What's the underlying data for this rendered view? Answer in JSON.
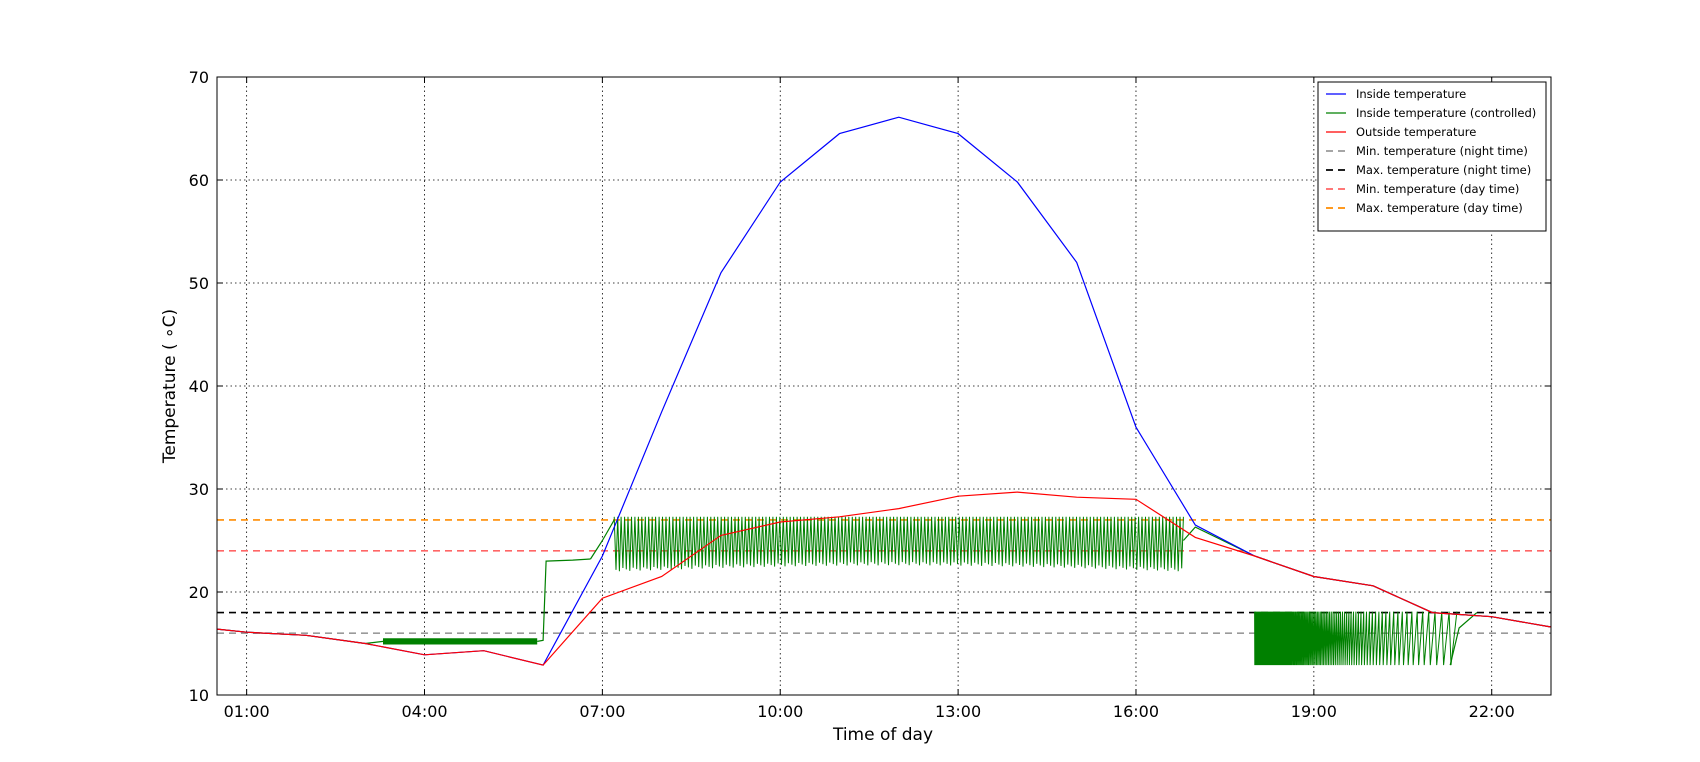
{
  "chart_data": {
    "type": "line",
    "title": "",
    "xlabel": "Time of day",
    "ylabel": "Temperature ( ∘C)",
    "xlim": [
      0.5,
      23
    ],
    "ylim": [
      10,
      70
    ],
    "x_unit": "hours",
    "x_ticks": [
      1,
      4,
      7,
      10,
      13,
      16,
      19,
      22
    ],
    "x_tick_labels": [
      "01:00",
      "04:00",
      "07:00",
      "10:00",
      "13:00",
      "16:00",
      "19:00",
      "22:00"
    ],
    "y_ticks": [
      10,
      20,
      30,
      40,
      50,
      60,
      70
    ],
    "y_tick_labels": [
      "10",
      "20",
      "30",
      "40",
      "50",
      "60",
      "70"
    ],
    "grid": true,
    "legend_position": "top-right",
    "series": [
      {
        "name": "Inside temperature",
        "color": "#0000ff",
        "style": "solid",
        "x": [
          0.5,
          1,
          2,
          3,
          4,
          5,
          6,
          7,
          8,
          9,
          10,
          11,
          12,
          13,
          14,
          15,
          16,
          17,
          18,
          19,
          20,
          21,
          22,
          23
        ],
        "y": [
          16.4,
          16.1,
          15.8,
          15.0,
          13.9,
          14.3,
          12.9,
          23.5,
          37.5,
          51.0,
          59.8,
          64.5,
          66.1,
          64.5,
          59.8,
          52.0,
          36.0,
          26.5,
          23.5,
          21.5,
          20.6,
          18.0,
          17.6,
          16.6
        ]
      },
      {
        "name": "Inside temperature (controlled)",
        "color": "#008000",
        "style": "solid",
        "segments": [
          {
            "x": [
              0.5,
              1,
              2,
              3,
              3.3
            ],
            "y": [
              16.4,
              16.1,
              15.8,
              15.0,
              15.2
            ]
          },
          {
            "x": [
              3.3,
              4,
              5,
              5.9
            ],
            "y": [
              15.2,
              15.2,
              15.2,
              15.2
            ],
            "band": [
              14.9,
              15.5
            ]
          },
          {
            "x": [
              5.9,
              6.0,
              6.05,
              6.5,
              6.8
            ],
            "y": [
              15.2,
              15.3,
              23.0,
              23.1,
              23.2
            ]
          },
          {
            "x": [
              6.8,
              7.0,
              7.2
            ],
            "y": [
              23.2,
              25.0,
              27.0
            ]
          },
          {
            "x": [
              7.2,
              16.8
            ],
            "y_low": 22.0,
            "y_high": 27.3,
            "oscillating": true
          },
          {
            "x": [
              16.8,
              17.0,
              18.0,
              19,
              20,
              21,
              22,
              23
            ],
            "y": [
              25.0,
              26.3,
              23.5,
              21.5,
              20.6,
              18.0,
              17.6,
              16.6
            ]
          },
          {
            "x": [
              18.0,
              21.3
            ],
            "y_low": 12.9,
            "y_high": 18.1,
            "oscillating": true,
            "decaying_density": true
          }
        ]
      },
      {
        "name": "Outside temperature",
        "color": "#ff0000",
        "style": "solid",
        "x": [
          0.5,
          1,
          2,
          3,
          4,
          5,
          6,
          7,
          8,
          9,
          10,
          11,
          12,
          13,
          14,
          15,
          16,
          17,
          18,
          19,
          20,
          21,
          22,
          23
        ],
        "y": [
          16.4,
          16.1,
          15.8,
          15.0,
          13.9,
          14.3,
          12.9,
          19.4,
          21.5,
          25.5,
          26.8,
          27.3,
          28.1,
          29.3,
          29.7,
          29.2,
          29.0,
          25.3,
          23.5,
          21.5,
          20.6,
          18.0,
          17.6,
          16.6
        ]
      },
      {
        "name": "Min. temperature (night time)",
        "color": "#9a9a9a",
        "style": "dashed",
        "y_const": 16
      },
      {
        "name": "Max. temperature (night time)",
        "color": "#000000",
        "style": "dashed",
        "y_const": 18
      },
      {
        "name": "Min. temperature (day time)",
        "color": "#ff6666",
        "style": "dashed",
        "y_const": 24
      },
      {
        "name": "Max. temperature (day time)",
        "color": "#ff8c00",
        "style": "dashed",
        "y_const": 27
      }
    ]
  }
}
